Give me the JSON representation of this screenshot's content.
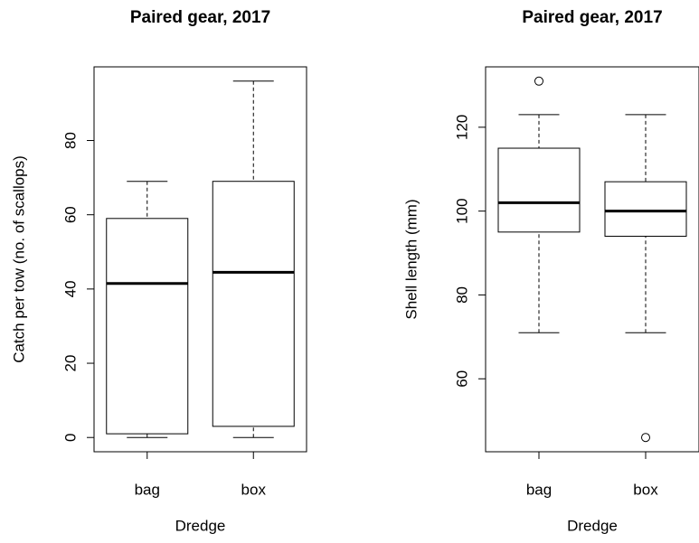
{
  "chart_data": [
    {
      "type": "box",
      "title": "Paired gear, 2017",
      "x_label": "Dredge",
      "y_label": "Catch per tow (no. of scallops)",
      "categories": [
        "bag",
        "box"
      ],
      "boxes": [
        {
          "min": 0,
          "q1": 1,
          "median": 41.5,
          "q3": 59,
          "max": 69
        },
        {
          "min": 0,
          "q1": 3,
          "median": 44.5,
          "q3": 69,
          "max": 96
        }
      ],
      "ylim": [
        -3.84,
        99.84
      ],
      "yticks": [
        0,
        20,
        40,
        60,
        80
      ]
    },
    {
      "type": "box",
      "title": "Paired gear, 2017",
      "x_label": "Dredge",
      "y_label": "Shell length (mm)",
      "categories": [
        "bag",
        "box"
      ],
      "boxes": [
        {
          "min": 71,
          "q1": 95,
          "median": 102,
          "q3": 115,
          "max": 123,
          "outliers": [
            131
          ]
        },
        {
          "min": 71,
          "q1": 94,
          "median": 100,
          "q3": 107,
          "max": 123,
          "outliers": [
            46
          ]
        }
      ],
      "ylim": [
        42.6,
        134.4
      ],
      "yticks": [
        60,
        80,
        100,
        120
      ]
    }
  ]
}
